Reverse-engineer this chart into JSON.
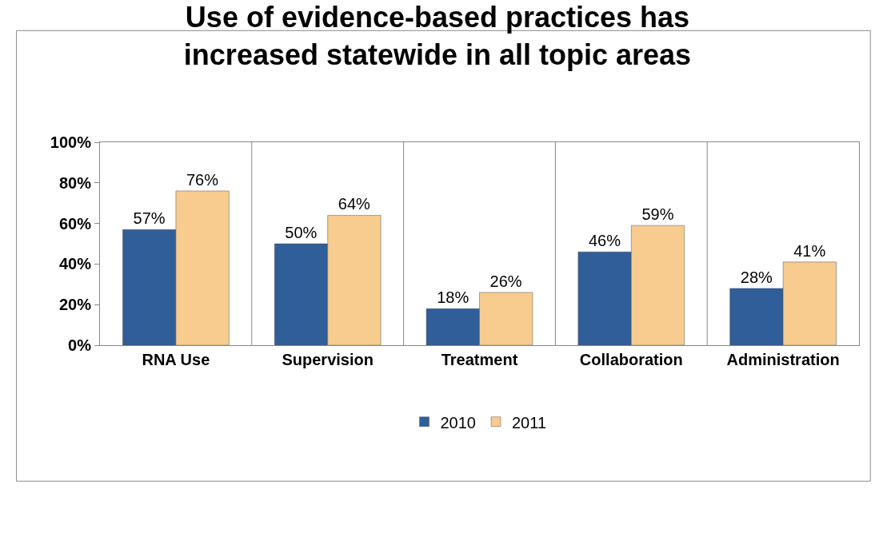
{
  "chart_data": {
    "type": "bar",
    "title": "Use of evidence-based practices has increased statewide in all topic areas",
    "categories": [
      "RNA Use",
      "Supervision",
      "Treatment",
      "Collaboration",
      "Administration"
    ],
    "series": [
      {
        "name": "2010",
        "color": "#2f5e99",
        "values": [
          57,
          50,
          18,
          46,
          28
        ],
        "value_labels": [
          "57%",
          "50%",
          "18%",
          "46%",
          "28%"
        ]
      },
      {
        "name": "2011",
        "color": "#f8cb8e",
        "values": [
          76,
          64,
          26,
          59,
          41
        ],
        "value_labels": [
          "76%",
          "64%",
          "26%",
          "59%",
          "41%"
        ]
      }
    ],
    "ylim": [
      0,
      100
    ],
    "yticks": [
      {
        "value": 0,
        "label": "0%"
      },
      {
        "value": 20,
        "label": "20%"
      },
      {
        "value": 40,
        "label": "40%"
      },
      {
        "value": 60,
        "label": "60%"
      },
      {
        "value": 80,
        "label": "80%"
      },
      {
        "value": 100,
        "label": "100%"
      }
    ],
    "grid": "x",
    "legend": "bottom"
  }
}
